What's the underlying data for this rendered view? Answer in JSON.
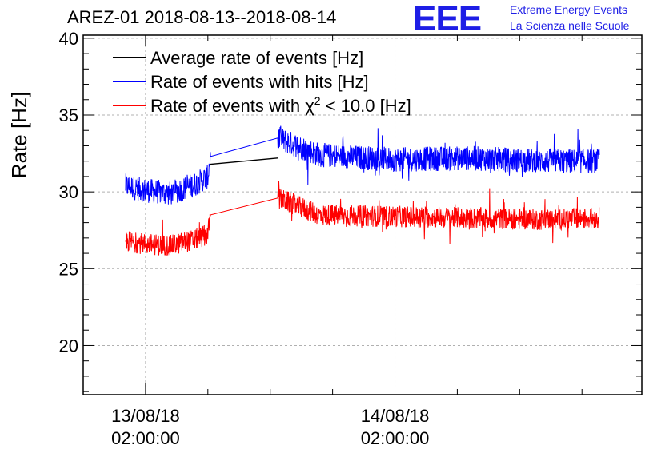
{
  "header": {
    "title": "AREZ-01 2018-08-13--2018-08-14",
    "logo_text": "EEE",
    "logo_line1": "Extreme Energy Events",
    "logo_line2": "La Scienza nelle Scuole",
    "logo_color": "#1e1ee6"
  },
  "chart_data": {
    "type": "line",
    "title": "AREZ-01 2018-08-13--2018-08-14",
    "xlabel": "",
    "ylabel": "Rate [Hz]",
    "ylim": [
      16.8,
      40.2
    ],
    "yticks": [
      20,
      25,
      30,
      35,
      40
    ],
    "xlim": [
      -0.25,
      1.99
    ],
    "x_unit": "days from 2018-08-13 02:00:00",
    "xticks": [
      {
        "x": 0,
        "line1": "13/08/18",
        "line2": "02:00:00"
      },
      {
        "x": 1,
        "line1": "14/08/18",
        "line2": "02:00:00"
      }
    ],
    "grid": true,
    "legend_position": "top-left",
    "gap": [
      0.26,
      0.53
    ],
    "series": [
      {
        "name": "Average rate of events [Hz]",
        "color": "#000000",
        "x": [
          0.26,
          0.53
        ],
        "y": [
          31.8,
          32.2
        ],
        "noise": 0
      },
      {
        "name": "Rate of events with hits [Hz]",
        "color": "#0000ff",
        "x": [
          -0.08,
          0.0,
          0.1,
          0.2,
          0.25,
          0.26,
          0.53,
          0.7,
          1.0,
          1.3,
          1.6,
          1.82
        ],
        "y": [
          30.4,
          30.1,
          29.9,
          30.5,
          31.0,
          32.3,
          33.5,
          32.4,
          32.1,
          32.2,
          32.0,
          32.0
        ],
        "noise": 0.8
      },
      {
        "name": "Rate of events with χ2 < 10.0 [Hz]",
        "legend_parts": [
          "Rate of events with ",
          "χ",
          "2",
          " < 10.0 [Hz]"
        ],
        "color": "#ff0000",
        "x": [
          -0.08,
          0.0,
          0.1,
          0.2,
          0.25,
          0.26,
          0.53,
          0.7,
          1.0,
          1.3,
          1.6,
          1.82
        ],
        "y": [
          26.8,
          26.6,
          26.5,
          26.9,
          27.2,
          28.5,
          29.6,
          28.5,
          28.4,
          28.3,
          28.2,
          28.3
        ],
        "noise": 0.7
      }
    ]
  }
}
